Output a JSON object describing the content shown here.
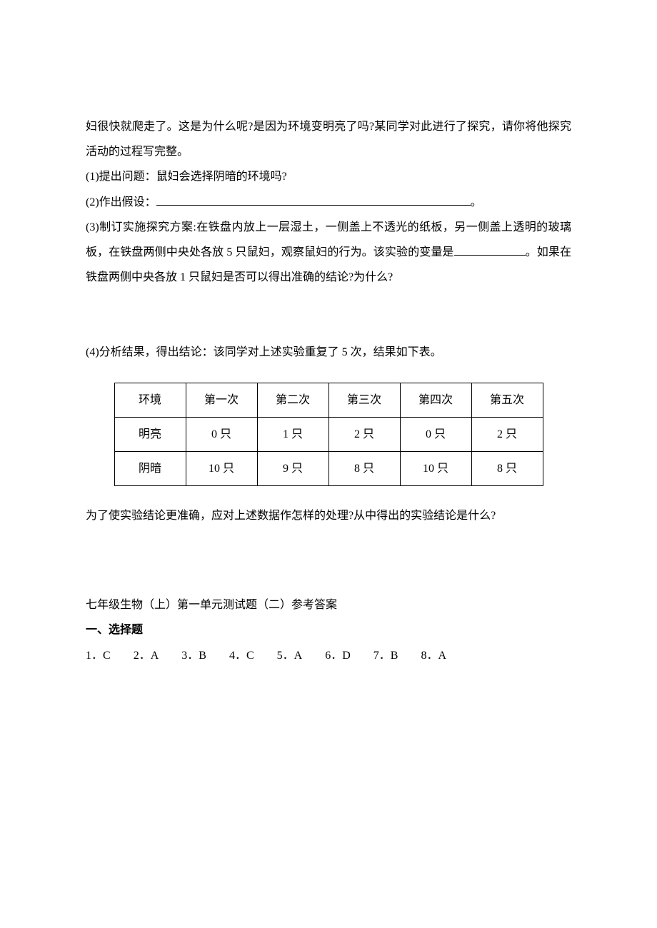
{
  "intro": {
    "p1": "妇很快就爬走了。这是为什么呢?是因为环境变明亮了吗?某同学对此进行了探究，请你将他探究活动的过程写完整。",
    "q1": "(1)提出问题：鼠妇会选择阴暗的环境吗?",
    "q2_pre": "(2)作出假设：",
    "q2_post": "。",
    "q3a": "(3)制订实施探究方案:在铁盘内放上一层湿土，一侧盖上不透光的纸板，另一侧盖上透明的玻璃板，在铁盘两侧中央处各放 5 只鼠妇，观察鼠妇的行为。该实验的变量是",
    "q3b": "。如果在铁盘两侧中央各放 1 只鼠妇是否可以得出准确的结论?为什么?",
    "q4": "(4)分析结果，得出结论：该同学对上述实验重复了 5 次，结果如下表。"
  },
  "table": {
    "headers": [
      "环境",
      "第一次",
      "第二次",
      "第三次",
      "第四次",
      "第五次"
    ],
    "rows": [
      [
        "明亮",
        "0 只",
        "1 只",
        "2 只",
        "0 只",
        "2 只"
      ],
      [
        "阴暗",
        "10 只",
        "9 只",
        "8 只",
        "10 只",
        "8 只"
      ]
    ]
  },
  "followup": "为了使实验结论更准确，应对上述数据作怎样的处理?从中得出的实验结论是什么?",
  "answers": {
    "title": "七年级生物（上）第一单元测试题（二）参考答案",
    "section": "一、选择题",
    "items": [
      "1．C",
      "2．A",
      "3．B",
      "4．C",
      "5．A",
      "6．D",
      "7．B",
      "8．A"
    ]
  }
}
